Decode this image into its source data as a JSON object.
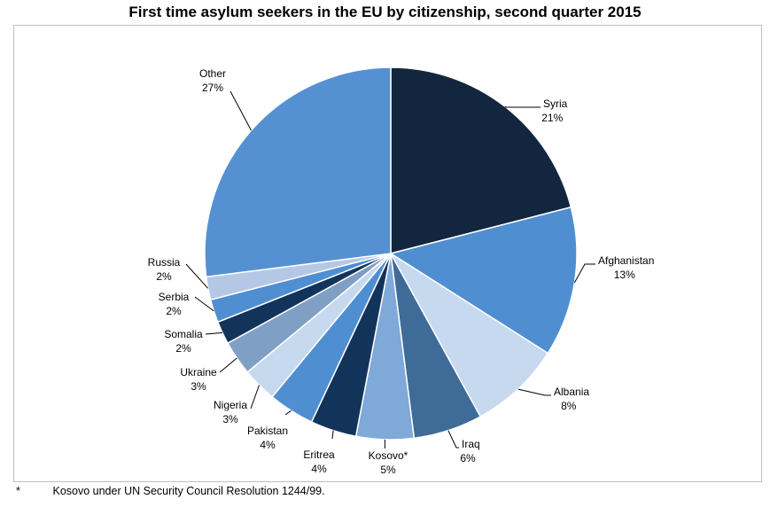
{
  "chart_data": {
    "type": "pie",
    "title": "First time asylum seekers in the EU by citizenship, second quarter 2015",
    "slices": [
      {
        "label": "Syria",
        "pct_label": "21%",
        "value": 21,
        "color": "#13263f"
      },
      {
        "label": "Afghanistan",
        "pct_label": "13%",
        "value": 13,
        "color": "#4f8fd1"
      },
      {
        "label": "Albania",
        "pct_label": "8%",
        "value": 8,
        "color": "#c6d9ef"
      },
      {
        "label": "Iraq",
        "pct_label": "6%",
        "value": 6,
        "color": "#3f6b98"
      },
      {
        "label": "Kosovo*",
        "pct_label": "5%",
        "value": 5,
        "color": "#7ea9d9"
      },
      {
        "label": "Eritrea",
        "pct_label": "4%",
        "value": 4,
        "color": "#13345a"
      },
      {
        "label": "Pakistan",
        "pct_label": "4%",
        "value": 4,
        "color": "#4f8fd1"
      },
      {
        "label": "Nigeria",
        "pct_label": "3%",
        "value": 3,
        "color": "#c6d9ef"
      },
      {
        "label": "Ukraine",
        "pct_label": "3%",
        "value": 3,
        "color": "#7f9fc4"
      },
      {
        "label": "Somalia",
        "pct_label": "2%",
        "value": 2,
        "color": "#13345a"
      },
      {
        "label": "Serbia",
        "pct_label": "2%",
        "value": 2,
        "color": "#4f8fd1"
      },
      {
        "label": "Russia",
        "pct_label": "2%",
        "value": 2,
        "color": "#b4c8e6"
      },
      {
        "label": "Other",
        "pct_label": "27%",
        "value": 27,
        "color": "#5591d2"
      }
    ],
    "legend": "none (callout labels)"
  },
  "footnote": {
    "mark": "*",
    "text": "Kosovo under UN Security Council Resolution 1244/99."
  }
}
